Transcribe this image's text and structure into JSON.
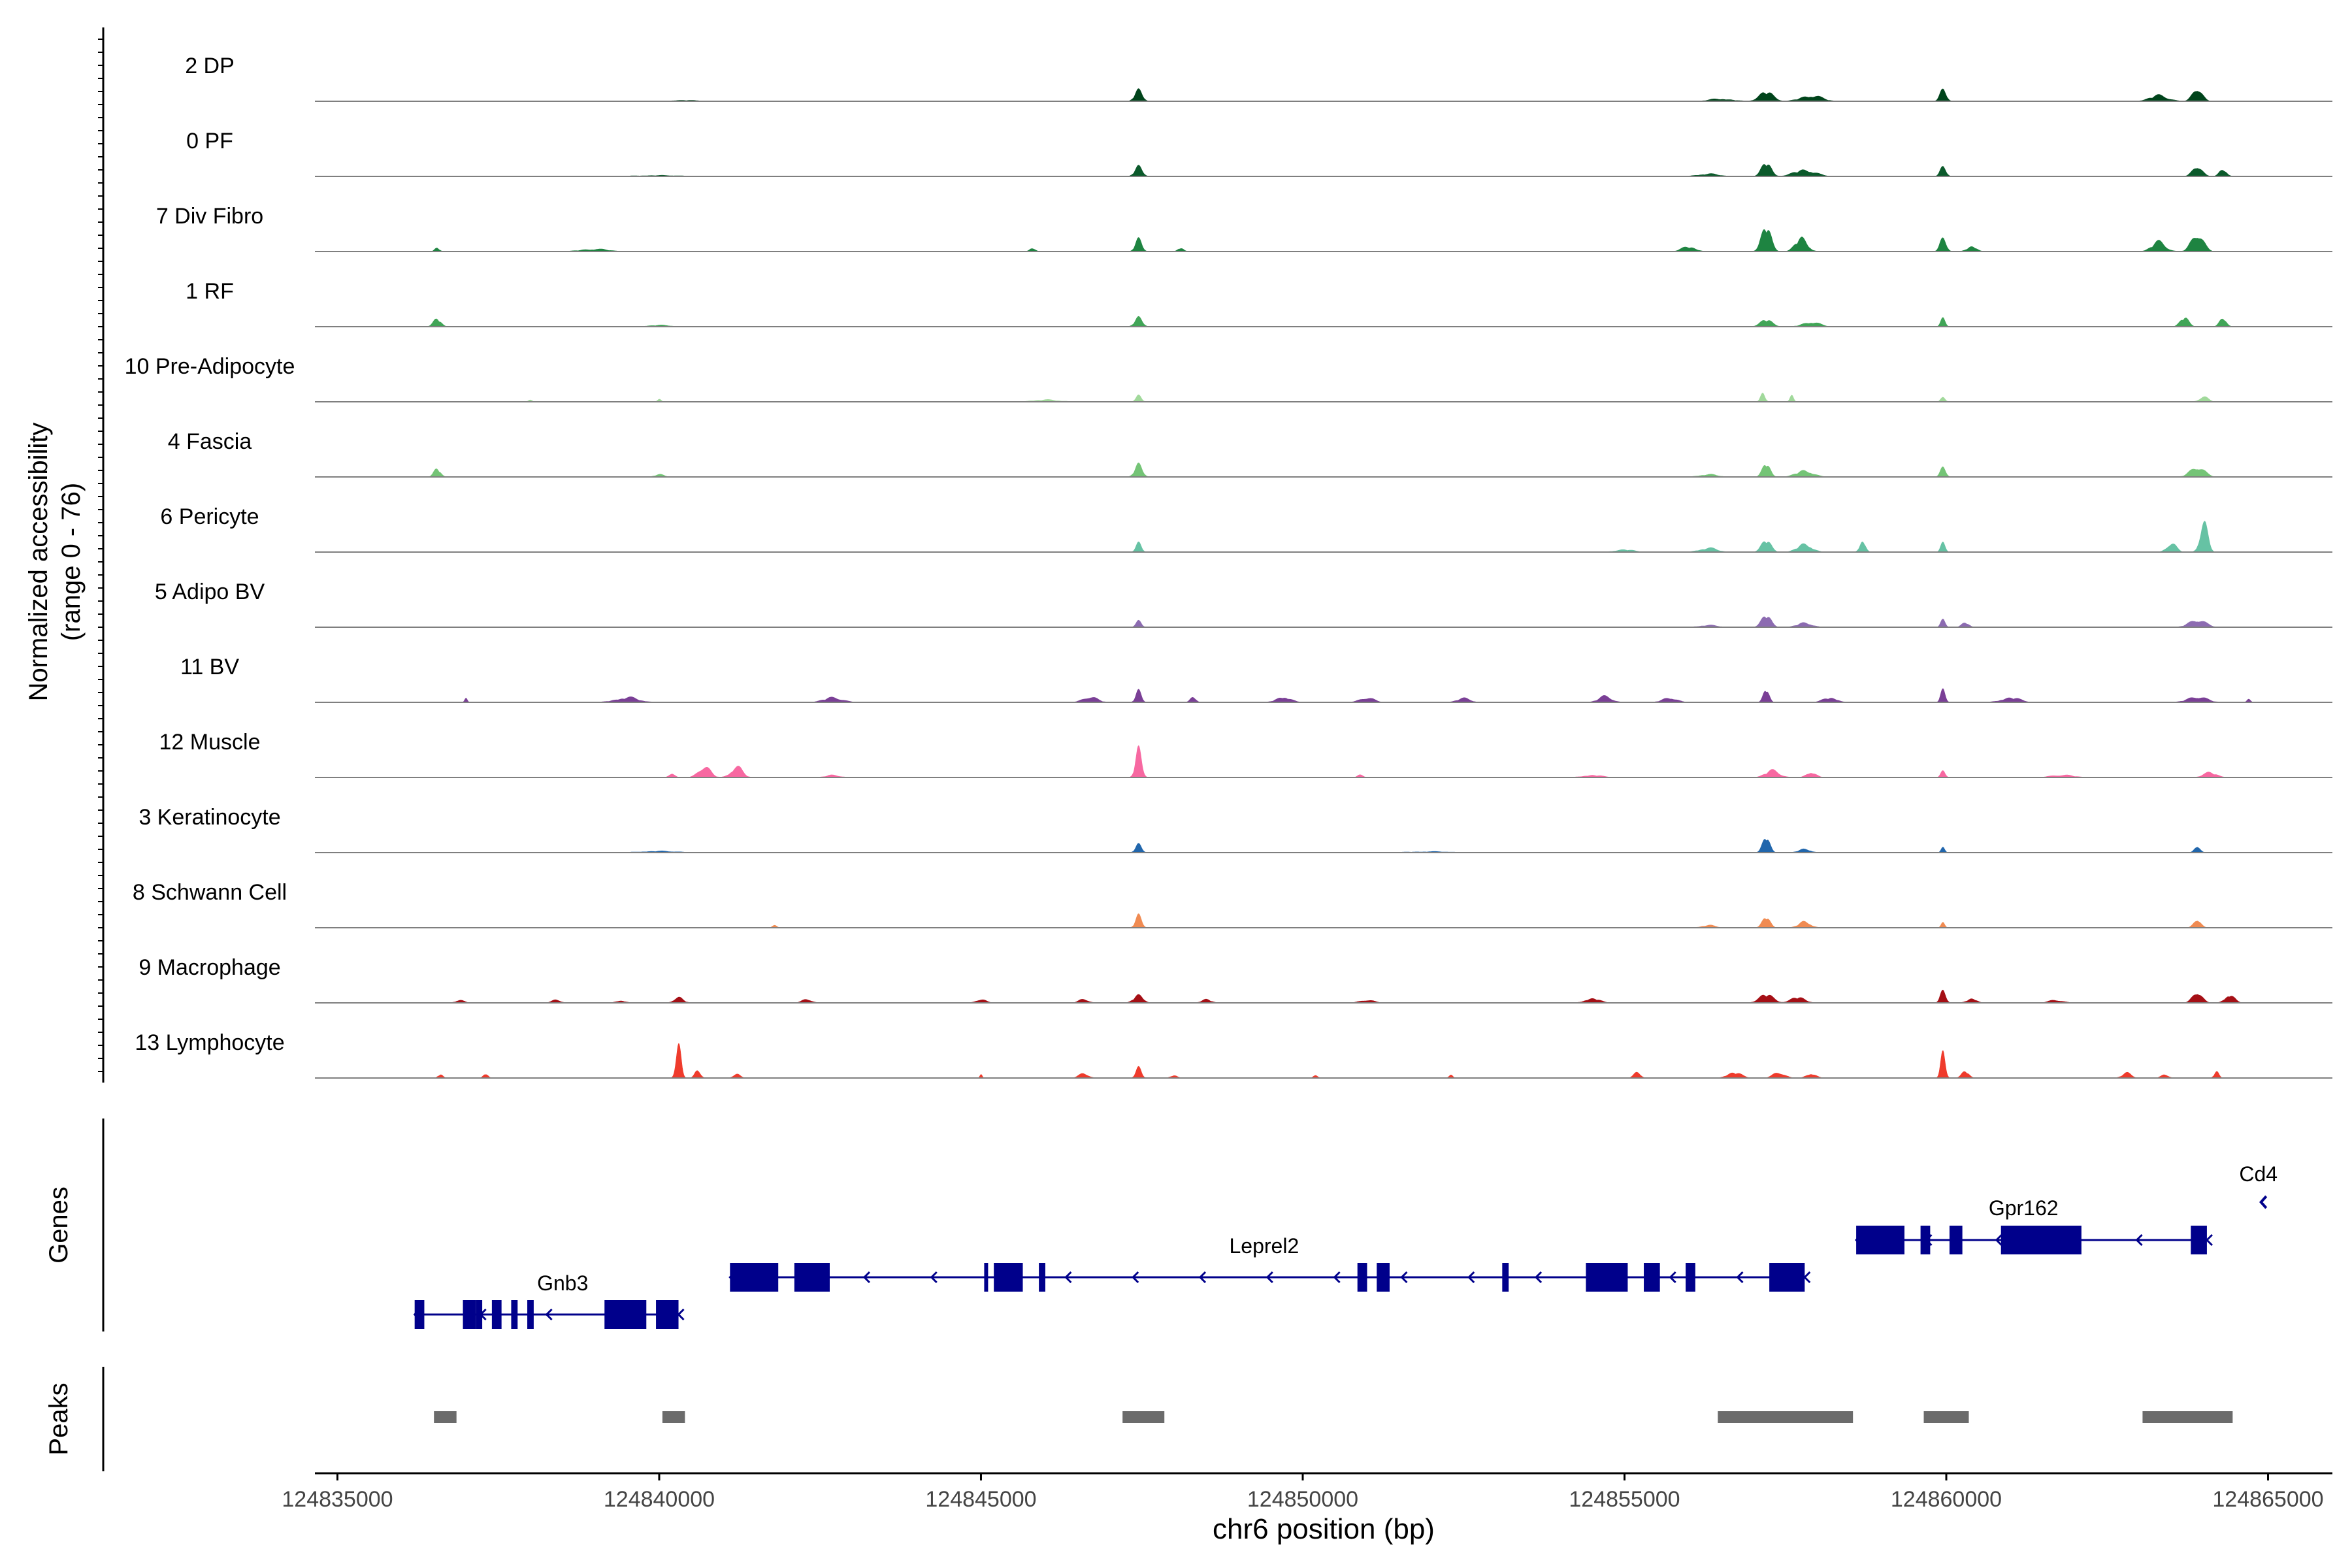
{
  "chart_data": {
    "type": "area",
    "title": "",
    "region": "chr6",
    "xlabel": "chr6 position (bp)",
    "ylabel": "Normalized accessibility",
    "ylabel_range": "(range 0 - 76)",
    "y_range": [
      0,
      76
    ],
    "xlim": [
      124834650,
      124866000
    ],
    "x_ticks": [
      124835000,
      124840000,
      124845000,
      124850000,
      124855000,
      124860000,
      124865000
    ],
    "x_tick_labels": [
      "124835000",
      "124840000",
      "124845000",
      "124850000",
      "124855000",
      "124860000",
      "124865000"
    ],
    "track_labels": {
      "genes": "Genes",
      "peaks": "Peaks"
    },
    "series": [
      {
        "name": "2 DP",
        "color": "#00441B",
        "peaks": [
          [
            124847450,
            0.27,
            160
          ],
          [
            124857200,
            0.2,
            300
          ],
          [
            124857900,
            0.12,
            450
          ],
          [
            124859950,
            0.27,
            140
          ],
          [
            124863900,
            0.3,
            200
          ],
          [
            124863300,
            0.12,
            400
          ],
          [
            124856500,
            0.05,
            500
          ],
          [
            124840400,
            0.02,
            700
          ]
        ]
      },
      {
        "name": "0 PF",
        "color": "#0B5A2B",
        "peaks": [
          [
            124847450,
            0.24,
            160
          ],
          [
            124857200,
            0.3,
            200
          ],
          [
            124857800,
            0.14,
            450
          ],
          [
            124859950,
            0.22,
            130
          ],
          [
            124863900,
            0.24,
            200
          ],
          [
            124864300,
            0.16,
            160
          ],
          [
            124856300,
            0.05,
            500
          ],
          [
            124840000,
            0.02,
            1000
          ]
        ]
      },
      {
        "name": "7 Div Fibro",
        "color": "#1E8441",
        "peaks": [
          [
            124847450,
            0.3,
            140
          ],
          [
            124857200,
            0.55,
            200
          ],
          [
            124857750,
            0.3,
            250
          ],
          [
            124859950,
            0.3,
            140
          ],
          [
            124860400,
            0.12,
            200
          ],
          [
            124863900,
            0.4,
            250
          ],
          [
            124863300,
            0.2,
            300
          ],
          [
            124856000,
            0.1,
            300
          ],
          [
            124836550,
            0.08,
            100
          ],
          [
            124839000,
            0.05,
            600
          ],
          [
            124845800,
            0.08,
            120
          ],
          [
            124848100,
            0.08,
            120
          ]
        ]
      },
      {
        "name": "1 RF",
        "color": "#41A557",
        "peaks": [
          [
            124836550,
            0.17,
            160
          ],
          [
            124847450,
            0.22,
            160
          ],
          [
            124857200,
            0.15,
            250
          ],
          [
            124857900,
            0.1,
            350
          ],
          [
            124859950,
            0.2,
            100
          ],
          [
            124863700,
            0.2,
            180
          ],
          [
            124864300,
            0.2,
            150
          ],
          [
            124840000,
            0.03,
            500
          ]
        ]
      },
      {
        "name": "10 Pre-Adipocyte",
        "color": "#A1D99B",
        "peaks": [
          [
            124847450,
            0.15,
            120
          ],
          [
            124857150,
            0.18,
            100
          ],
          [
            124857600,
            0.12,
            80
          ],
          [
            124859950,
            0.1,
            100
          ],
          [
            124864000,
            0.1,
            200
          ],
          [
            124838000,
            0.05,
            80
          ],
          [
            124840000,
            0.05,
            80
          ],
          [
            124846000,
            0.04,
            600
          ]
        ]
      },
      {
        "name": "4 Fascia",
        "color": "#74C476",
        "peaks": [
          [
            124836550,
            0.18,
            140
          ],
          [
            124847450,
            0.3,
            160
          ],
          [
            124857200,
            0.3,
            160
          ],
          [
            124857800,
            0.14,
            350
          ],
          [
            124859950,
            0.22,
            120
          ],
          [
            124863900,
            0.22,
            300
          ],
          [
            124840000,
            0.05,
            200
          ],
          [
            124856300,
            0.05,
            400
          ]
        ]
      },
      {
        "name": "6 Pericyte",
        "color": "#66C2A4",
        "peaks": [
          [
            124847450,
            0.22,
            120
          ],
          [
            124857200,
            0.26,
            200
          ],
          [
            124857800,
            0.18,
            300
          ],
          [
            124858700,
            0.28,
            120
          ],
          [
            124859950,
            0.22,
            100
          ],
          [
            124864000,
            0.6,
            170
          ],
          [
            124863500,
            0.2,
            200
          ],
          [
            124856300,
            0.08,
            400
          ],
          [
            124855000,
            0.05,
            400
          ]
        ]
      },
      {
        "name": "5 Adipo BV",
        "color": "#8C6BB1",
        "peaks": [
          [
            124847450,
            0.15,
            120
          ],
          [
            124857200,
            0.26,
            200
          ],
          [
            124857800,
            0.1,
            300
          ],
          [
            124859950,
            0.18,
            100
          ],
          [
            124860300,
            0.1,
            150
          ],
          [
            124863900,
            0.16,
            350
          ],
          [
            124856300,
            0.04,
            400
          ]
        ]
      },
      {
        "name": "11 BV",
        "color": "#7A3F96",
        "peaks": [
          [
            124847450,
            0.28,
            120
          ],
          [
            124857200,
            0.3,
            120
          ],
          [
            124859950,
            0.3,
            100
          ],
          [
            124837000,
            0.08,
            60
          ],
          [
            124839500,
            0.1,
            500
          ],
          [
            124842700,
            0.1,
            400
          ],
          [
            124846700,
            0.12,
            300
          ],
          [
            124848300,
            0.12,
            120
          ],
          [
            124849700,
            0.12,
            300
          ],
          [
            124851000,
            0.1,
            300
          ],
          [
            124852500,
            0.08,
            300
          ],
          [
            124854700,
            0.12,
            300
          ],
          [
            124855700,
            0.1,
            300
          ],
          [
            124858200,
            0.1,
            300
          ],
          [
            124861000,
            0.1,
            400
          ],
          [
            124863900,
            0.12,
            400
          ],
          [
            124864700,
            0.08,
            80
          ]
        ]
      },
      {
        "name": "12 Muscle",
        "color": "#F768A1",
        "peaks": [
          [
            124847450,
            0.68,
            130
          ],
          [
            124840700,
            0.24,
            250
          ],
          [
            124841200,
            0.22,
            250
          ],
          [
            124840200,
            0.1,
            120
          ],
          [
            124857300,
            0.15,
            300
          ],
          [
            124857900,
            0.12,
            200
          ],
          [
            124859950,
            0.15,
            100
          ],
          [
            124864100,
            0.1,
            300
          ],
          [
            124842700,
            0.05,
            300
          ],
          [
            124850900,
            0.06,
            120
          ],
          [
            124854500,
            0.05,
            400
          ],
          [
            124861800,
            0.05,
            500
          ]
        ]
      },
      {
        "name": "3 Keratinocyte",
        "color": "#2166AC",
        "peaks": [
          [
            124847450,
            0.2,
            130
          ],
          [
            124857200,
            0.35,
            150
          ],
          [
            124857800,
            0.08,
            250
          ],
          [
            124859950,
            0.12,
            80
          ],
          [
            124863900,
            0.16,
            120
          ],
          [
            124840000,
            0.03,
            800
          ],
          [
            124852000,
            0.02,
            1000
          ]
        ]
      },
      {
        "name": "8 Schwann Cell",
        "color": "#F08B52",
        "peaks": [
          [
            124847450,
            0.3,
            130
          ],
          [
            124857200,
            0.24,
            160
          ],
          [
            124857800,
            0.14,
            250
          ],
          [
            124859950,
            0.12,
            80
          ],
          [
            124863900,
            0.2,
            150
          ],
          [
            124841800,
            0.05,
            100
          ],
          [
            124856300,
            0.05,
            300
          ]
        ]
      },
      {
        "name": "9 Macrophage",
        "color": "#A50F15",
        "peaks": [
          [
            124847450,
            0.18,
            200
          ],
          [
            124840300,
            0.12,
            200
          ],
          [
            124842300,
            0.08,
            200
          ],
          [
            124845000,
            0.08,
            200
          ],
          [
            124846600,
            0.08,
            200
          ],
          [
            124848500,
            0.08,
            200
          ],
          [
            124851000,
            0.06,
            300
          ],
          [
            124854500,
            0.1,
            300
          ],
          [
            124857200,
            0.18,
            300
          ],
          [
            124857700,
            0.12,
            300
          ],
          [
            124859950,
            0.28,
            120
          ],
          [
            124860400,
            0.1,
            200
          ],
          [
            124861700,
            0.06,
            300
          ],
          [
            124863900,
            0.25,
            200
          ],
          [
            124864400,
            0.18,
            200
          ],
          [
            124836900,
            0.05,
            200
          ],
          [
            124838400,
            0.06,
            200
          ],
          [
            124839400,
            0.05,
            200
          ]
        ]
      },
      {
        "name": "13 Lymphocyte",
        "color": "#EF3B2C",
        "peaks": [
          [
            124840300,
            0.72,
            110
          ],
          [
            124840600,
            0.18,
            120
          ],
          [
            124859950,
            0.6,
            100
          ],
          [
            124860300,
            0.15,
            150
          ],
          [
            124836600,
            0.08,
            100
          ],
          [
            124837300,
            0.1,
            100
          ],
          [
            124841200,
            0.08,
            150
          ],
          [
            124845000,
            0.1,
            50
          ],
          [
            124846600,
            0.1,
            200
          ],
          [
            124847450,
            0.25,
            120
          ],
          [
            124848000,
            0.06,
            150
          ],
          [
            124850200,
            0.06,
            100
          ],
          [
            124852300,
            0.08,
            80
          ],
          [
            124855200,
            0.12,
            150
          ],
          [
            124856700,
            0.12,
            300
          ],
          [
            124857400,
            0.12,
            250
          ],
          [
            124857900,
            0.1,
            200
          ],
          [
            124862800,
            0.1,
            200
          ],
          [
            124863400,
            0.08,
            150
          ],
          [
            124864200,
            0.15,
            100
          ]
        ]
      }
    ],
    "genes": [
      {
        "name": "Gnb3",
        "strand": "-",
        "start": 124836200,
        "end": 124840300,
        "exons": [
          [
            124836200,
            124836350
          ],
          [
            124836950,
            124837150
          ],
          [
            124837150,
            124837250
          ],
          [
            124837400,
            124837550
          ],
          [
            124837700,
            124837800
          ],
          [
            124837950,
            124838050
          ],
          [
            124839150,
            124839800
          ],
          [
            124839950,
            124840300
          ]
        ]
      },
      {
        "name": "Leprel2",
        "strand": "-",
        "start": 124841100,
        "end": 124857800,
        "exons": [
          [
            124841100,
            124841850
          ],
          [
            124842100,
            124842650
          ],
          [
            124845050,
            124845100
          ],
          [
            124845200,
            124845650
          ],
          [
            124845900,
            124846000
          ],
          [
            124850850,
            124851000
          ],
          [
            124851150,
            124851350
          ],
          [
            124853100,
            124853200
          ],
          [
            124854400,
            124855050
          ],
          [
            124855300,
            124855550
          ],
          [
            124855950,
            124856100
          ],
          [
            124857250,
            124857800
          ]
        ]
      },
      {
        "name": "Gpr162",
        "strand": "-",
        "start": 124858600,
        "end": 124864050,
        "exons": [
          [
            124858600,
            124859350
          ],
          [
            124859600,
            124859750
          ],
          [
            124860050,
            124860250
          ],
          [
            124860850,
            124862100
          ],
          [
            124863800,
            124864050
          ]
        ]
      },
      {
        "name": "Cd4",
        "strand": "-",
        "start": 124864850,
        "end": 124865050,
        "exons": []
      }
    ],
    "peaks_track": [
      [
        124836500,
        124836850
      ],
      [
        124840050,
        124840400
      ],
      [
        124847200,
        124847850
      ],
      [
        124856450,
        124858550
      ],
      [
        124859650,
        124860350
      ],
      [
        124863050,
        124864450
      ]
    ]
  }
}
